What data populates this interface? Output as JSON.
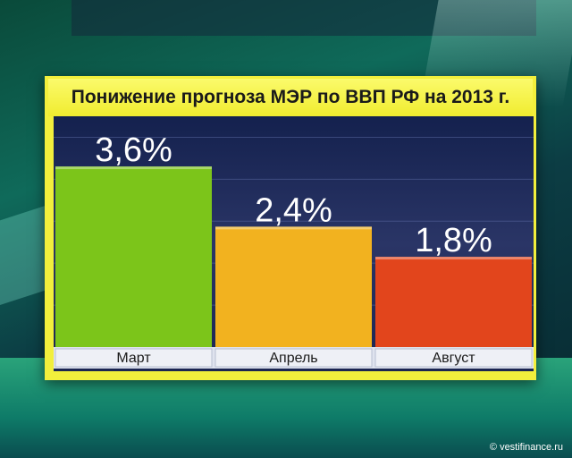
{
  "chart_data": {
    "type": "bar",
    "title": "Понижение прогноза МЭР по ВВП РФ на 2013 г.",
    "categories": [
      "Март",
      "Апрель",
      "Август"
    ],
    "values": [
      3.6,
      2.4,
      1.8
    ],
    "value_labels": [
      "3,6%",
      "2,4%",
      "1,8%"
    ],
    "unit": "%",
    "ylim": [
      0,
      4.6
    ],
    "grid": true,
    "colors": {
      "bars": [
        "#7cc51a",
        "#f2b21f",
        "#e2451c"
      ],
      "title_bg": "#f2ef3c",
      "plot_bg": "#1f2b5c"
    }
  },
  "footer": {
    "source": "© vestifinance.ru"
  }
}
